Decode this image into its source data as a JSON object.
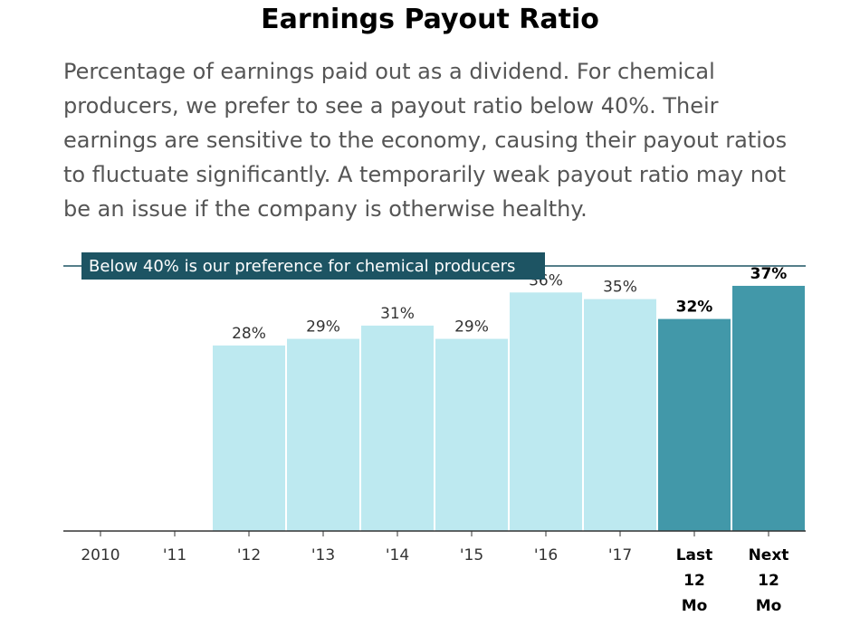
{
  "header": {
    "title": "Earnings Payout Ratio",
    "subtitle": "Percentage of earnings paid out as a dividend. For chemical producers, we prefer to see a payout ratio below 40%. Their earnings are sensitive to the economy, causing their payout ratios to fluctuate significantly. A temporarily weak payout ratio may not be an issue if the company is otherwise healthy."
  },
  "chart_data": {
    "type": "bar",
    "categories": [
      "2010",
      "'11",
      "'12",
      "'13",
      "'14",
      "'15",
      "'16",
      "'17",
      "Last 12 Mo",
      "Next 12 Mo"
    ],
    "values": [
      null,
      null,
      28,
      29,
      31,
      29,
      36,
      35,
      32,
      37
    ],
    "value_labels": [
      "",
      "",
      "28%",
      "29%",
      "31%",
      "29%",
      "36%",
      "35%",
      "32%",
      "37%"
    ],
    "highlighted": [
      false,
      false,
      false,
      false,
      false,
      false,
      false,
      false,
      true,
      true
    ],
    "ylim": [
      0,
      40
    ],
    "reference_line": {
      "value": 40,
      "label": "Below 40% is our preference for chemical producers"
    },
    "colors": {
      "bar": "#bde9f0",
      "highlight": "#4298a9",
      "reference": "#1d5463",
      "axis": "#333333"
    },
    "grid": false
  }
}
